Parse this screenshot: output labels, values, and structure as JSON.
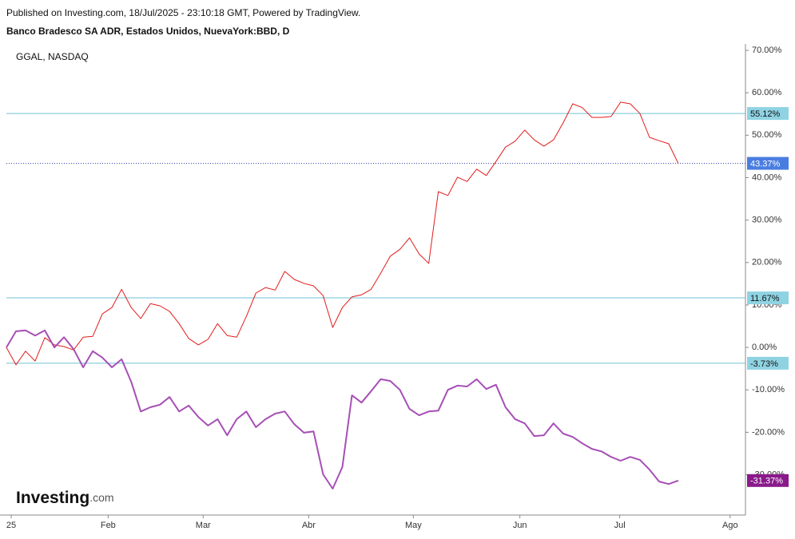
{
  "chart_data": {
    "type": "line",
    "published": "Published on Investing.com, 18/Jul/2025 - 23:10:18 GMT, Powered by TradingView.",
    "logo": "Investing",
    "logo_suffix": ".com",
    "xlim": [
      0,
      77
    ],
    "xticks": [
      {
        "value": 0.5,
        "label": "25"
      },
      {
        "value": 10.6,
        "label": "Feb"
      },
      {
        "value": 20.5,
        "label": "Mar"
      },
      {
        "value": 31.5,
        "label": "Abr"
      },
      {
        "value": 42.4,
        "label": "May"
      },
      {
        "value": 53.5,
        "label": "Jun"
      },
      {
        "value": 63.9,
        "label": "Jul"
      },
      {
        "value": 75.4,
        "label": "Ago"
      }
    ],
    "ylim": [
      -39.5,
      72
    ],
    "yticks": [
      {
        "value": -30,
        "label": "-30.00%"
      },
      {
        "value": -20,
        "label": "-20.00%"
      },
      {
        "value": -10,
        "label": "-10.00%"
      },
      {
        "value": 0,
        "label": "0.00%"
      },
      {
        "value": 10,
        "label": "10.00%"
      },
      {
        "value": 20,
        "label": "20.00%"
      },
      {
        "value": 30,
        "label": "30.00%"
      },
      {
        "value": 40,
        "label": "40.00%"
      },
      {
        "value": 50,
        "label": "50.00%"
      },
      {
        "value": 60,
        "label": "60.00%"
      },
      {
        "value": 70,
        "label": "70.00%"
      }
    ],
    "reference_lines": [
      {
        "value": 55.12,
        "label": "55.12%"
      },
      {
        "value": 11.67,
        "label": "11.67%"
      },
      {
        "value": -3.73,
        "label": "-3.73%"
      }
    ],
    "series": [
      {
        "name": "Banco Bradesco SA ADR, Estados Unidos, NuevaYork:BBD, D",
        "color": "#e31b1b",
        "last_label": "43.37%",
        "label_color": "#4a7de0",
        "values": [
          0,
          -4.1,
          -0.9,
          -3.2,
          2.3,
          0.6,
          0.2,
          -0.6,
          2.4,
          2.6,
          7.9,
          9.4,
          13.7,
          9.4,
          6.8,
          10.3,
          9.8,
          8.5,
          5.6,
          2.1,
          0.6,
          1.9,
          5.6,
          2.8,
          2.4,
          7.3,
          12.8,
          14.1,
          13.5,
          17.9,
          16.0,
          15.1,
          14.5,
          12.2,
          4.7,
          9.4,
          11.9,
          12.4,
          13.7,
          17.5,
          21.5,
          23.1,
          25.8,
          22.0,
          19.8,
          36.7,
          35.8,
          40.1,
          39.1,
          42.0,
          40.5,
          43.8,
          47.2,
          48.6,
          51.2,
          48.9,
          47.4,
          48.9,
          52.9,
          57.4,
          56.5,
          54.2,
          54.2,
          54.4,
          57.8,
          57.4,
          55.1,
          49.5,
          48.7,
          48.0,
          43.37
        ]
      },
      {
        "name": "GGAL, NASDAQ",
        "color": "#a64fb5",
        "last_label": "-31.37%",
        "label_color": "#8a1a8a",
        "values": [
          0,
          3.8,
          4.0,
          2.8,
          4.0,
          0,
          2.4,
          -0.4,
          -4.7,
          -0.9,
          -2.4,
          -4.7,
          -2.8,
          -8.1,
          -15.1,
          -14.1,
          -13.5,
          -11.7,
          -15.1,
          -13.7,
          -16.4,
          -18.4,
          -16.9,
          -20.7,
          -16.9,
          -15.1,
          -18.8,
          -16.9,
          -15.6,
          -15.1,
          -18.1,
          -20.1,
          -19.8,
          -29.9,
          -33.3,
          -28.2,
          -11.3,
          -13.0,
          -10.3,
          -7.5,
          -7.9,
          -10.0,
          -14.5,
          -16.0,
          -15.1,
          -14.9,
          -10.0,
          -9.0,
          -9.2,
          -7.5,
          -9.8,
          -8.8,
          -14.1,
          -16.9,
          -17.9,
          -20.9,
          -20.7,
          -17.9,
          -20.3,
          -21.1,
          -22.6,
          -23.9,
          -24.5,
          -25.8,
          -26.7,
          -25.8,
          -26.5,
          -28.8,
          -31.6,
          -32.2,
          -31.37
        ]
      }
    ]
  }
}
